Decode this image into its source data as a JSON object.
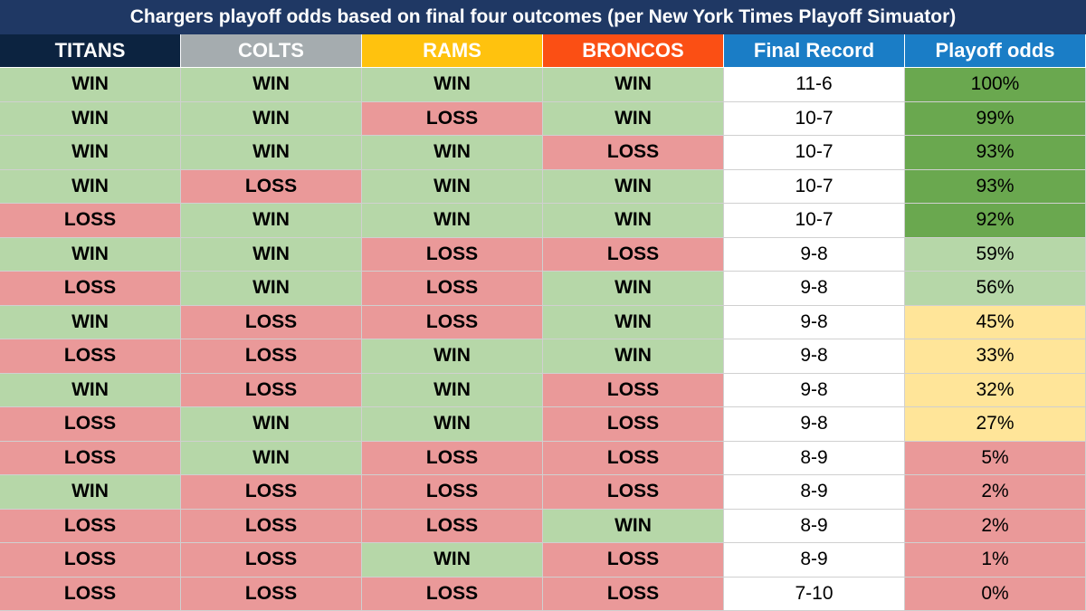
{
  "header": {
    "title": "Chargers playoff odds based on final four outcomes (per New York Times Playoff Simuator)"
  },
  "table": {
    "columns": [
      "TITANS",
      "COLTS",
      "RAMS",
      "BRONCOS",
      "Final Record",
      "Playoff odds"
    ],
    "column_colors": [
      "#0c2340",
      "#a5acaf",
      "#ffc20e",
      "#fb4f14",
      "#1a7dc6",
      "#1a7dc6"
    ],
    "outcome_colors": {
      "WIN": "#b6d7a8",
      "LOSS": "#ea9999"
    },
    "odds_colors": [
      "#6aa84f",
      "#6aa84f",
      "#6aa84f",
      "#6aa84f",
      "#6aa84f",
      "#b6d7a8",
      "#b6d7a8",
      "#ffe599",
      "#ffe599",
      "#ffe599",
      "#ffe599",
      "#ea9999",
      "#ea9999",
      "#ea9999",
      "#ea9999",
      "#ea9999"
    ],
    "rows": [
      [
        "WIN",
        "WIN",
        "WIN",
        "WIN",
        "11-6",
        "100%"
      ],
      [
        "WIN",
        "WIN",
        "LOSS",
        "WIN",
        "10-7",
        "99%"
      ],
      [
        "WIN",
        "WIN",
        "WIN",
        "LOSS",
        "10-7",
        "93%"
      ],
      [
        "WIN",
        "LOSS",
        "WIN",
        "WIN",
        "10-7",
        "93%"
      ],
      [
        "LOSS",
        "WIN",
        "WIN",
        "WIN",
        "10-7",
        "92%"
      ],
      [
        "WIN",
        "WIN",
        "LOSS",
        "LOSS",
        "9-8",
        "59%"
      ],
      [
        "LOSS",
        "WIN",
        "LOSS",
        "WIN",
        "9-8",
        "56%"
      ],
      [
        "WIN",
        "LOSS",
        "LOSS",
        "WIN",
        "9-8",
        "45%"
      ],
      [
        "LOSS",
        "LOSS",
        "WIN",
        "WIN",
        "9-8",
        "33%"
      ],
      [
        "WIN",
        "LOSS",
        "WIN",
        "LOSS",
        "9-8",
        "32%"
      ],
      [
        "LOSS",
        "WIN",
        "WIN",
        "LOSS",
        "9-8",
        "27%"
      ],
      [
        "LOSS",
        "WIN",
        "LOSS",
        "LOSS",
        "8-9",
        "5%"
      ],
      [
        "WIN",
        "LOSS",
        "LOSS",
        "LOSS",
        "8-9",
        "2%"
      ],
      [
        "LOSS",
        "LOSS",
        "LOSS",
        "WIN",
        "8-9",
        "2%"
      ],
      [
        "LOSS",
        "LOSS",
        "WIN",
        "LOSS",
        "8-9",
        "1%"
      ],
      [
        "LOSS",
        "LOSS",
        "LOSS",
        "LOSS",
        "7-10",
        "0%"
      ]
    ]
  }
}
